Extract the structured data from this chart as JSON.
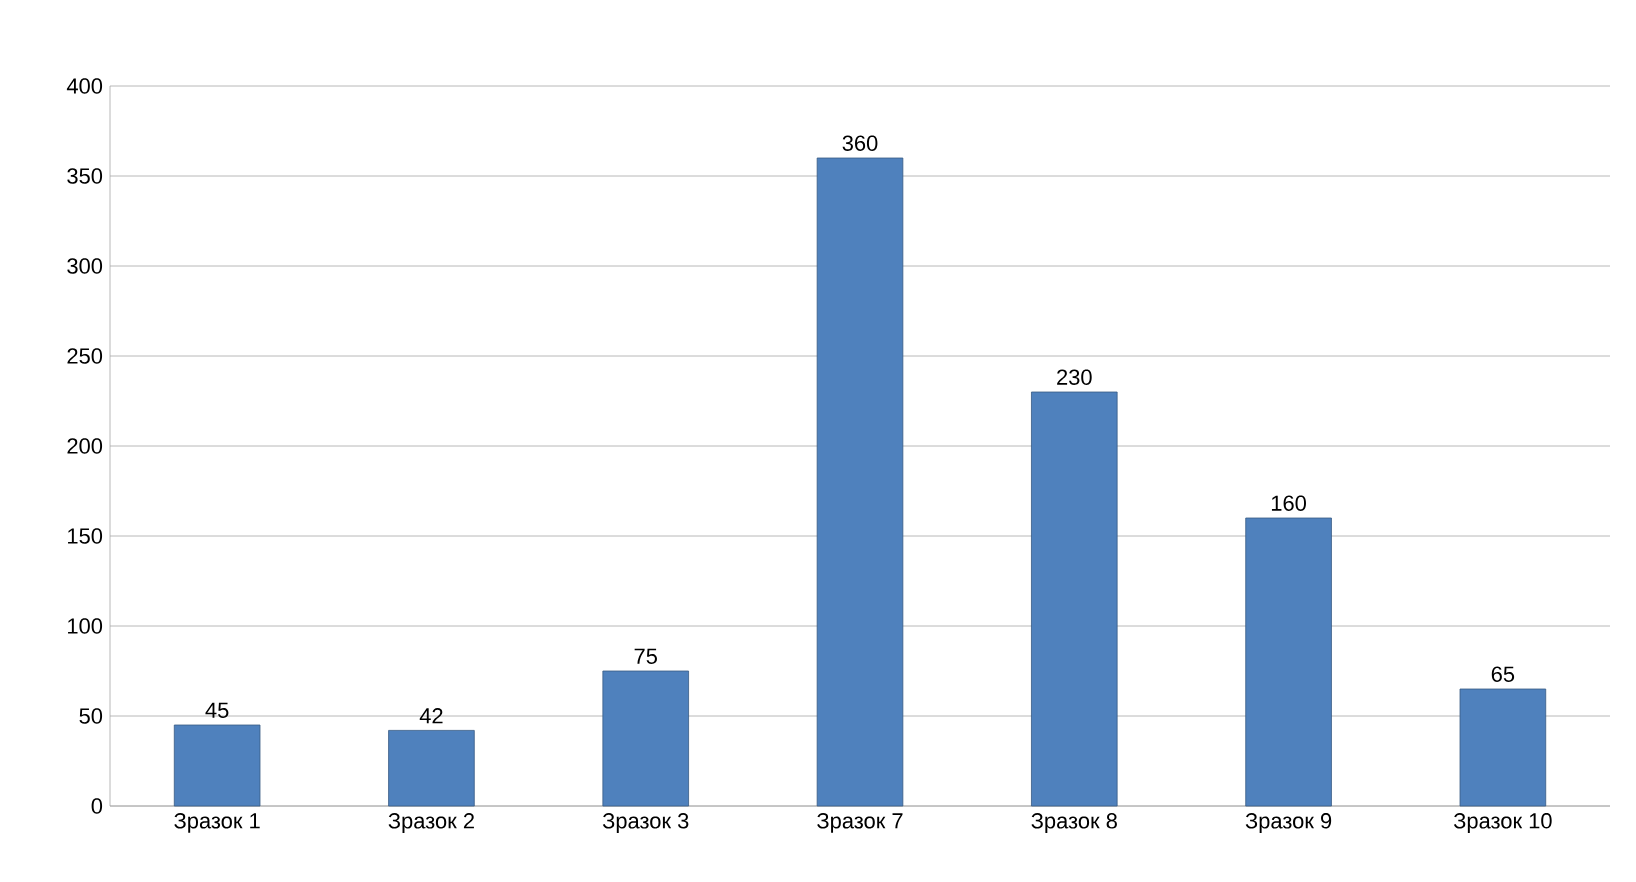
{
  "chart_data": {
    "type": "bar",
    "categories": [
      "Зразок 1",
      "Зразок 2",
      "Зразок 3",
      "Зразок 7",
      "Зразок 8",
      "Зразок 9",
      "Зразок 10"
    ],
    "values": [
      45,
      42,
      75,
      360,
      230,
      160,
      65
    ],
    "color": "#4f81bd",
    "ylim": [
      0,
      400
    ],
    "yticks": [
      0,
      50,
      100,
      150,
      200,
      250,
      300,
      350,
      400
    ],
    "grid": "y",
    "data_labels": true
  }
}
